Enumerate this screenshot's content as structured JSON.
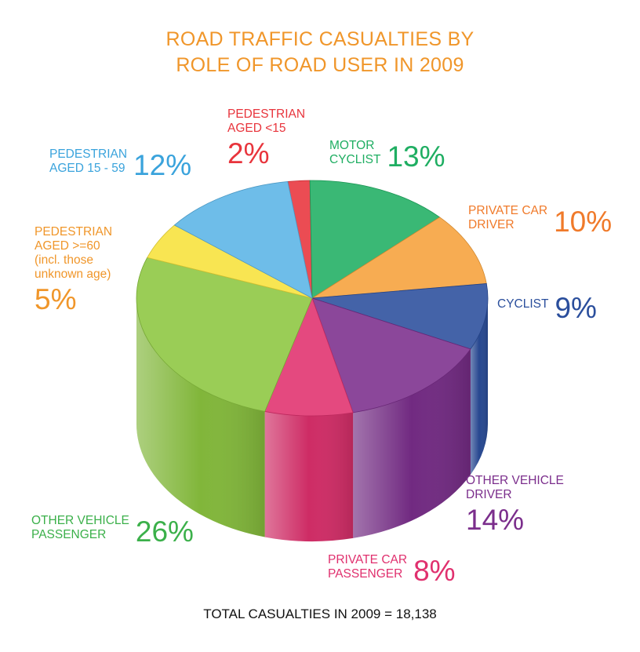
{
  "chart_data": {
    "type": "pie",
    "title_lines": [
      "ROAD TRAFFIC CASUALTIES BY",
      "ROLE OF ROAD USER IN 2009"
    ],
    "footer": "TOTAL CASUALTIES IN 2009 = 18,138",
    "slices": [
      {
        "label_lines": [
          "PEDESTRIAN",
          "AGED <15"
        ],
        "pct_label": "2%",
        "value": 2,
        "color": "#e8343c"
      },
      {
        "label_lines": [
          "MOTOR",
          "CYCLIST"
        ],
        "pct_label": "13%",
        "value": 13,
        "color": "#1fae62"
      },
      {
        "label_lines": [
          "PRIVATE CAR",
          "DRIVER"
        ],
        "pct_label": "10%",
        "value": 10,
        "color": "#f6a13a"
      },
      {
        "label_lines": [
          "CYCLIST"
        ],
        "pct_label": "9%",
        "value": 9,
        "color": "#2a4e9c"
      },
      {
        "label_lines": [
          "OTHER VEHICLE",
          "DRIVER"
        ],
        "pct_label": "14%",
        "value": 14,
        "color": "#7b2e8c"
      },
      {
        "label_lines": [
          "PRIVATE CAR",
          "PASSENGER"
        ],
        "pct_label": "8%",
        "value": 8,
        "color": "#e0306e"
      },
      {
        "label_lines": [
          "OTHER VEHICLE",
          "PASSENGER"
        ],
        "pct_label": "26%",
        "value": 26,
        "color": "#8cc63f"
      },
      {
        "label_lines": [
          "PEDESTRIAN",
          "AGED >=60",
          "(incl. those",
          "unknown age)"
        ],
        "pct_label": "5%",
        "value": 5,
        "color": "#f7e23a"
      },
      {
        "label_lines": [
          "PEDESTRIAN",
          "AGED 15 - 59"
        ],
        "pct_label": "12%",
        "value": 12,
        "color": "#5ab4e6"
      }
    ]
  }
}
